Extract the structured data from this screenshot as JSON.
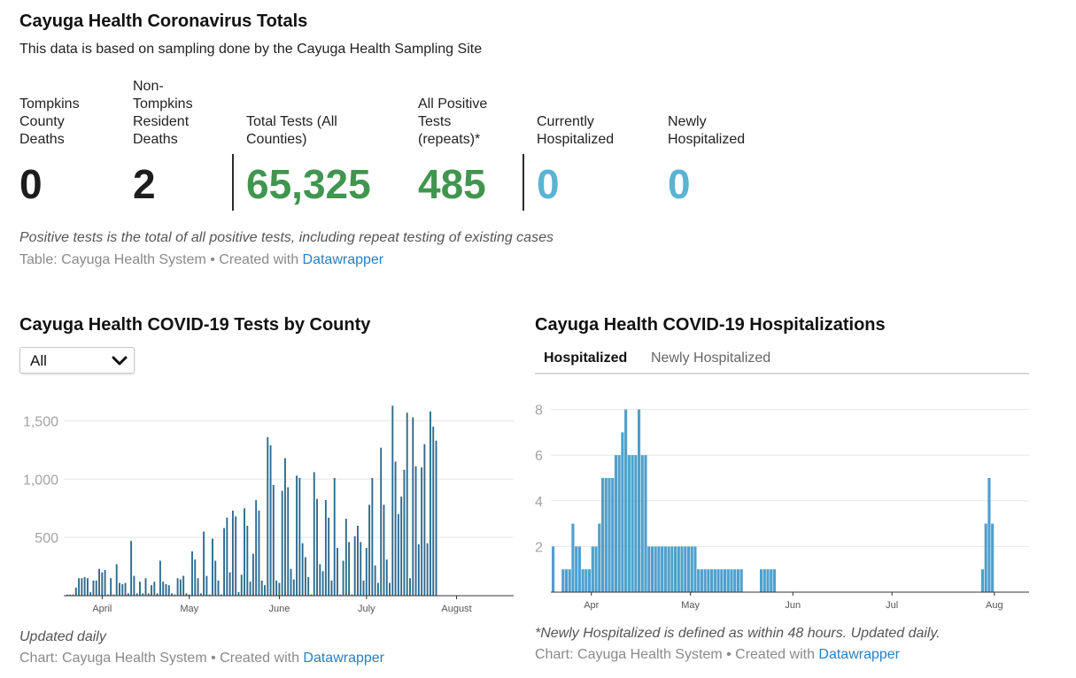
{
  "table": {
    "title": "Cayuga Health Coronavirus Totals",
    "subtitle": "This data is based on sampling done by the Cayuga Health Sampling Site",
    "stats": [
      {
        "label_lines": [
          "Tompkins",
          "County",
          "Deaths"
        ],
        "value": "0",
        "color": "#1d1d1d"
      },
      {
        "label_lines": [
          "Non-",
          "Tompkins",
          "Resident",
          "Deaths"
        ],
        "value": "2",
        "color": "#1d1d1d"
      },
      {
        "label_lines": [
          "Total Tests (All",
          "Counties)"
        ],
        "value": "65,325",
        "color": "#40964f"
      },
      {
        "label_lines": [
          "All Positive",
          "Tests",
          "(repeats)*"
        ],
        "value": "485",
        "color": "#40964f"
      },
      {
        "label_lines": [
          "Currently",
          "Hospitalized"
        ],
        "value": "0",
        "color": "#5bb3d4"
      },
      {
        "label_lines": [
          "Newly",
          "Hospitalized"
        ],
        "value": "0",
        "color": "#5bb3d4"
      }
    ],
    "note": "Positive tests is the total of all positive tests, including repeat testing of existing cases",
    "credit_prefix": "Table: Cayuga Health System • Created with ",
    "credit_link": "Datawrapper"
  },
  "tests_chart": {
    "title": "Cayuga Health COVID-19 Tests by County",
    "dropdown_value": "All",
    "note": "Updated daily",
    "credit_prefix": "Chart: Cayuga Health System • Created with ",
    "credit_link": "Datawrapper"
  },
  "hosp_chart": {
    "title": "Cayuga Health COVID-19 Hospitalizations",
    "tabs": [
      "Hospitalized",
      "Newly Hospitalized"
    ],
    "active_tab": 0,
    "note": "*Newly Hospitalized is defined as within 48 hours. Updated daily.",
    "credit_prefix": "Chart: Cayuga Health System • Created with ",
    "credit_link": "Datawrapper"
  },
  "colors": {
    "green": "#40964f",
    "blue": "#5bb3d4",
    "tests_bar": "#2e6b8e",
    "hosp_bar": "#4fa0cc",
    "link": "#2a7fbf"
  },
  "chart_data": [
    {
      "type": "bar",
      "title": "Cayuga Health COVID-19 Tests by County",
      "x_tick_labels": [
        "April",
        "May",
        "June",
        "July",
        "August"
      ],
      "y_tick_labels": [
        "1,500",
        "1,000",
        "500"
      ],
      "y_ticks": [
        1500,
        1000,
        500
      ],
      "ylim": [
        0,
        1650
      ],
      "grid": true,
      "x_start": "2020-03-20",
      "values": [
        10,
        10,
        10,
        70,
        150,
        150,
        160,
        150,
        30,
        130,
        130,
        230,
        200,
        220,
        10,
        150,
        10,
        270,
        110,
        100,
        110,
        20,
        470,
        170,
        20,
        120,
        20,
        150,
        20,
        90,
        120,
        20,
        300,
        120,
        100,
        90,
        20,
        10,
        150,
        140,
        170,
        20,
        10,
        380,
        310,
        150,
        20,
        550,
        170,
        10,
        490,
        300,
        130,
        10,
        580,
        670,
        200,
        730,
        680,
        30,
        180,
        750,
        600,
        120,
        360,
        820,
        730,
        130,
        90,
        1360,
        1290,
        950,
        130,
        110,
        900,
        1180,
        930,
        230,
        140,
        1030,
        1010,
        450,
        330,
        160,
        10,
        1060,
        830,
        270,
        210,
        820,
        670,
        130,
        1010,
        410,
        10,
        300,
        660,
        460,
        10,
        510,
        600,
        460,
        130,
        410,
        780,
        1010,
        260,
        110,
        1270,
        780,
        310,
        110,
        1630,
        1150,
        700,
        850,
        1080,
        1570,
        150,
        1530,
        1110,
        440,
        1100,
        1300,
        450,
        1580,
        1450,
        1330
      ],
      "series_color": "#2e6b8e"
    },
    {
      "type": "bar",
      "title": "Cayuga Health COVID-19 Hospitalizations",
      "x_tick_labels": [
        "Apr",
        "May",
        "Jun",
        "Jul",
        "Aug"
      ],
      "y_tick_labels": [
        "8",
        "6",
        "4",
        "2"
      ],
      "y_ticks": [
        8,
        6,
        4,
        2
      ],
      "ylim": [
        0,
        8
      ],
      "grid": true,
      "series": [
        {
          "name": "Hospitalized",
          "start": "2020-03-20",
          "values": [
            2,
            0,
            0,
            1,
            1,
            1,
            3,
            2,
            2,
            1,
            1,
            1,
            2,
            2,
            3,
            5,
            5,
            5,
            5,
            6,
            6,
            7,
            8,
            6,
            6,
            6,
            8,
            6,
            6,
            2,
            2,
            2,
            2,
            2,
            2,
            2,
            2,
            2,
            2,
            2,
            2,
            2,
            2,
            2,
            1,
            1,
            1,
            1,
            1,
            1,
            1,
            1,
            1,
            1,
            1,
            1,
            1,
            1,
            0,
            0,
            0,
            0,
            0,
            1,
            1,
            1,
            1,
            1
          ]
        },
        {
          "name": "Hospitalized",
          "start": "2020-07-28",
          "values": [
            1,
            3,
            5,
            3
          ]
        }
      ],
      "series_color": "#4fa0cc"
    }
  ]
}
